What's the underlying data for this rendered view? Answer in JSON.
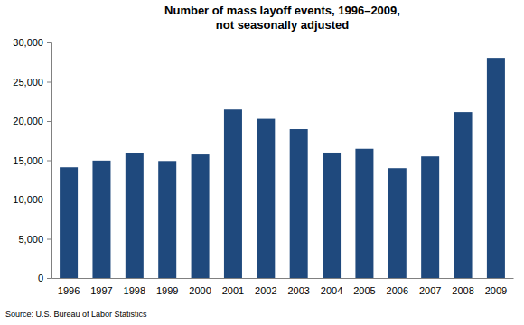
{
  "chart_data": {
    "type": "bar",
    "title": "Number of mass layoff events, 1996–2009,",
    "subtitle": "not seasonally adjusted",
    "source": "Source: U.S. Bureau of Labor Statistics",
    "categories": [
      "1996",
      "1997",
      "1998",
      "1999",
      "2000",
      "2001",
      "2002",
      "2003",
      "2004",
      "2005",
      "2006",
      "2007",
      "2008",
      "2009"
    ],
    "values": [
      14111,
      14960,
      15904,
      14909,
      15738,
      21467,
      20277,
      18963,
      15980,
      16466,
      13998,
      15493,
      21137,
      28030
    ],
    "color": "#1f497d",
    "ylim": [
      0,
      30000
    ],
    "yticks": [
      0,
      {
        "value": 5000,
        "label": "5,000"
      },
      {
        "value": 10000,
        "label": "10,000"
      },
      {
        "value": 15000,
        "label": "15,000"
      },
      {
        "value": 20000,
        "label": "20,000"
      },
      {
        "value": 25000,
        "label": "25,000"
      },
      {
        "value": 30000,
        "label": "30,000"
      }
    ],
    "grid": false
  }
}
